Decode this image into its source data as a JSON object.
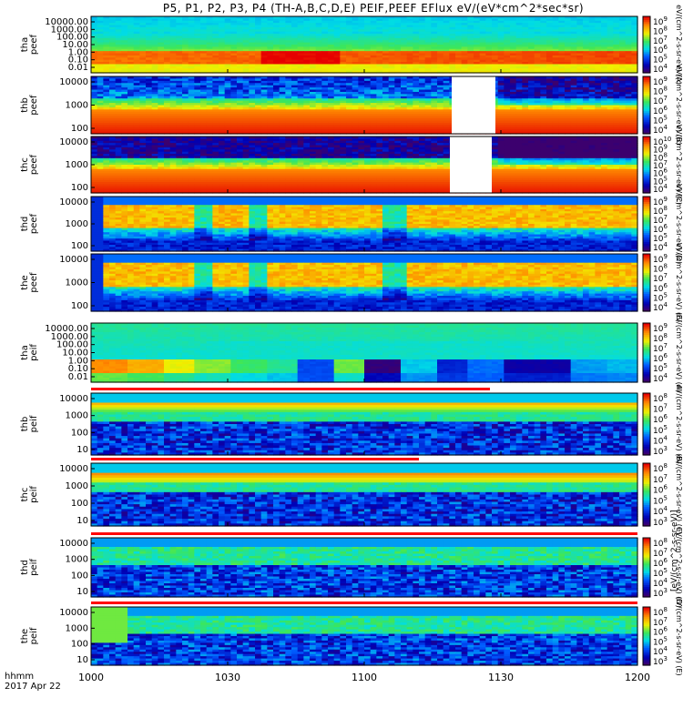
{
  "title": "P5, P1, P2, P3, P4 (TH-A,B,C,D,E) PEIF,PEEF EFlux eV/(eV*cm^2*sec*sr)",
  "x_axis": {
    "ticks": [
      "1000",
      "1030",
      "1100",
      "1130",
      "1200"
    ],
    "corner_label": "hhmm",
    "date_label": "2017 Apr 22"
  },
  "colors": {
    "background": "#ffffff",
    "gap_fill": "#ffffff",
    "flag_bar": "#ff0000"
  },
  "chart_data": [
    {
      "type": "heatmap",
      "ylabel": "tha peef",
      "yticks": [
        "10000.00",
        "1000.00",
        "100.00",
        "10.00",
        "1.00",
        "0.10",
        "0.01"
      ],
      "cbar_ticks": [
        "10^9",
        "10^8",
        "10^7",
        "10^6",
        "10^5",
        "10^4"
      ],
      "cbar_label": "eV/(cm^2-s-sr-eV) (A)"
    },
    {
      "type": "heatmap",
      "ylabel": "thb peef",
      "yticks": [
        "10000",
        "1000",
        "100"
      ],
      "cbar_ticks": [
        "10^9",
        "10^8",
        "10^7",
        "10^6",
        "10^5",
        "10^4"
      ],
      "cbar_label": "eV/(cm^2-s-sr-eV) (B)"
    },
    {
      "type": "heatmap",
      "ylabel": "thc peef",
      "yticks": [
        "10000",
        "1000",
        "100"
      ],
      "cbar_ticks": [
        "10^10",
        "10^9",
        "10^8",
        "10^7",
        "10^6",
        "10^5",
        "10^4"
      ],
      "cbar_label": "eV/(cm^2-s-sr-eV) (C)"
    },
    {
      "type": "heatmap",
      "ylabel": "thd peef",
      "yticks": [
        "10000",
        "1000",
        "100"
      ],
      "cbar_ticks": [
        "10^9",
        "10^8",
        "10^7",
        "10^6",
        "10^5",
        "10^4"
      ],
      "cbar_label": "eV/(cm^2-s-sr-eV) (D)"
    },
    {
      "type": "heatmap",
      "ylabel": "the peef",
      "yticks": [
        "10000",
        "1000",
        "100"
      ],
      "cbar_ticks": [
        "10^9",
        "10^8",
        "10^7",
        "10^6",
        "10^5",
        "10^4"
      ],
      "cbar_label": "eV/(cm^2-s-sr-eV) (E)"
    },
    {
      "type": "heatmap",
      "ylabel": "tha peif",
      "yticks": [
        "10000.00",
        "1000.00",
        "100.00",
        "10.00",
        "1.00",
        "0.10",
        "0.01"
      ],
      "cbar_ticks": [
        "10^9",
        "10^8",
        "10^7",
        "10^6",
        "10^5",
        "10^4"
      ],
      "cbar_label": "eV/(cm^2-s-sr-eV) (A)"
    },
    {
      "type": "heatmap",
      "ylabel": "thb peif",
      "yticks": [
        "10000",
        "1000",
        "100",
        "10"
      ],
      "cbar_ticks": [
        "10^8",
        "10^7",
        "10^6",
        "10^5",
        "10^4",
        "10^3"
      ],
      "cbar_label": "eV/(cm^2-s-sr-eV) (B)"
    },
    {
      "type": "heatmap",
      "ylabel": "thc peif",
      "yticks": [
        "10000",
        "1000",
        "100",
        "10"
      ],
      "cbar_ticks": [
        "10^8",
        "10^7",
        "10^6",
        "10^5",
        "10^4",
        "10^3"
      ],
      "cbar_label": "eV/(cm^2-s-sr-eV) (C)"
    },
    {
      "type": "heatmap",
      "ylabel": "thd peif",
      "yticks": [
        "10000",
        "1000",
        "100",
        "10"
      ],
      "cbar_ticks": [
        "10^8",
        "10^7",
        "10^6",
        "10^5",
        "10^4",
        "10^3"
      ],
      "cbar_label": "eV/(cm^2-s-sr-eV) (D)"
    },
    {
      "type": "heatmap",
      "ylabel": "the peif",
      "yticks": [
        "10000",
        "1000",
        "100",
        "10"
      ],
      "cbar_ticks": [
        "10^8",
        "10^7",
        "10^6",
        "10^5",
        "10^4",
        "10^3"
      ],
      "cbar_label": "eV/(cm^2-s-sr-eV) (E)"
    }
  ],
  "bottom_colorbar_label": "[eV/(cm^2-s-sr-eV)]"
}
